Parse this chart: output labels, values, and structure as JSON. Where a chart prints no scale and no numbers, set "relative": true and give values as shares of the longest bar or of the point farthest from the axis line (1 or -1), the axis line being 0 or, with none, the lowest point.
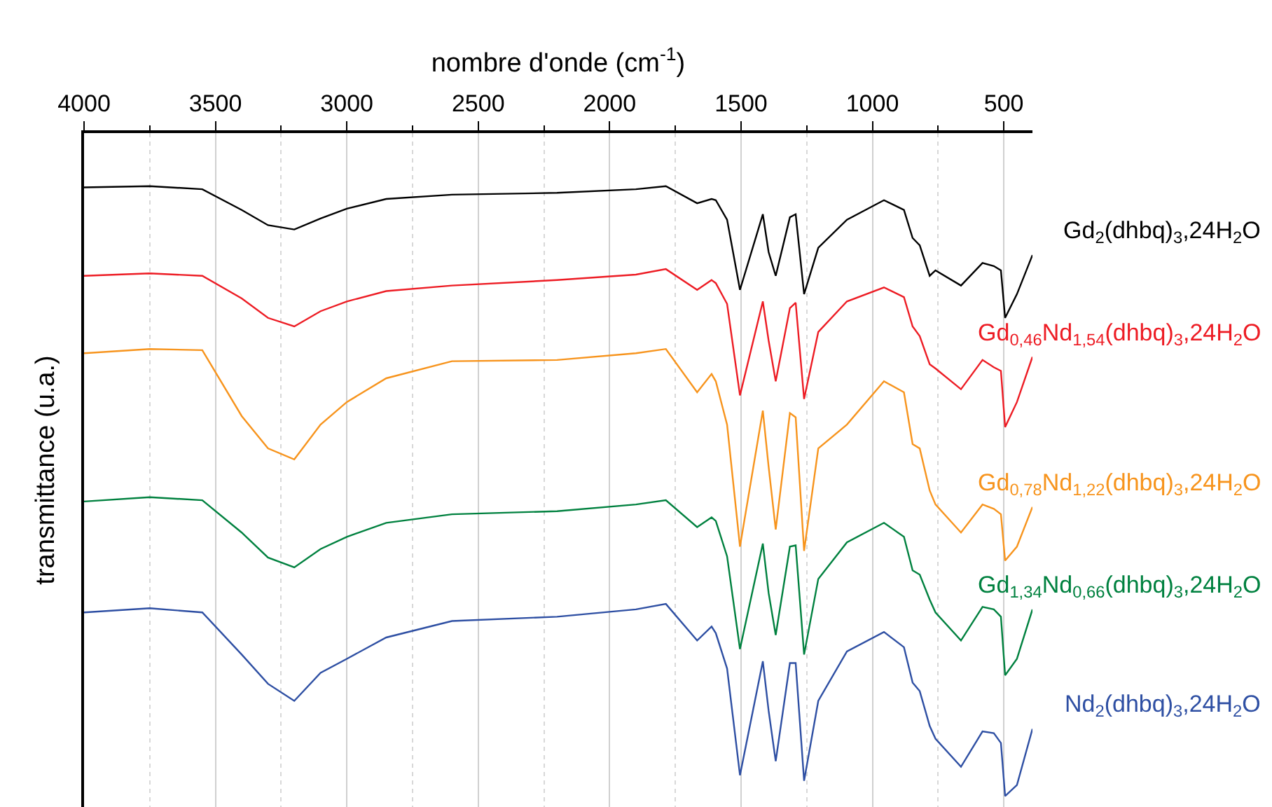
{
  "chart_data": {
    "type": "line",
    "relative": true,
    "xlabel": "nombre d'onde (cm$^{-1}$)",
    "ylabel": "transmittance (u.a.)",
    "x": [
      4000,
      3750,
      3550,
      3400,
      3300,
      3200,
      3100,
      3000,
      2850,
      2600,
      2200,
      1900,
      1786,
      1667,
      1612,
      1596,
      1553,
      1504,
      1417,
      1395,
      1368,
      1314,
      1292,
      1260,
      1206,
      1097,
      956,
      880,
      847,
      820,
      782,
      760,
      663,
      581,
      538,
      511,
      495,
      450,
      391
    ],
    "xlim": [
      4000,
      391
    ],
    "xticks": [
      4000,
      {
        "value": 3750,
        "label": null
      },
      3500,
      {
        "value": 3250,
        "label": null
      },
      3000,
      {
        "value": 2750,
        "label": null
      },
      2500,
      {
        "value": 2250,
        "label": null
      },
      2000,
      {
        "value": 1750,
        "label": null
      },
      1500,
      {
        "value": 1250,
        "label": null
      },
      1000,
      {
        "value": 750,
        "label": null
      },
      500
    ],
    "grid": "x",
    "legend": false,
    "marker": "none",
    "line_style": "solid",
    "series": [
      {
        "name": "Gd$_{2}$(dhbq)$_{3}$,24H$_{2}$O",
        "color": "#000000",
        "values": [
          0.998,
          1.0,
          0.995,
          0.961,
          0.936,
          0.929,
          0.947,
          0.963,
          0.979,
          0.986,
          0.989,
          0.995,
          1.0,
          0.972,
          0.979,
          0.977,
          0.945,
          0.83,
          0.954,
          0.892,
          0.853,
          0.949,
          0.954,
          0.823,
          0.899,
          0.945,
          0.977,
          0.961,
          0.915,
          0.903,
          0.853,
          0.862,
          0.837,
          0.874,
          0.869,
          0.862,
          0.784,
          0.823,
          0.887
        ]
      },
      {
        "name": "Gd$_{0,46}$Nd$_{1,54}$(dhbq)$_{3}$,24H$_{2}$O",
        "color": "#ed1c24",
        "values": [
          0.853,
          0.857,
          0.853,
          0.816,
          0.784,
          0.77,
          0.795,
          0.811,
          0.828,
          0.837,
          0.846,
          0.855,
          0.864,
          0.83,
          0.846,
          0.841,
          0.807,
          0.657,
          0.811,
          0.747,
          0.68,
          0.8,
          0.809,
          0.651,
          0.761,
          0.811,
          0.834,
          0.818,
          0.77,
          0.754,
          0.708,
          0.701,
          0.667,
          0.715,
          0.703,
          0.697,
          0.605,
          0.646,
          0.72
        ]
      },
      {
        "name": "Gd$_{0,78}$Nd$_{1,22}$(dhbq)$_{3}$,24H$_{2}$O",
        "color": "#f7941d",
        "values": [
          0.726,
          0.733,
          0.731,
          0.623,
          0.57,
          0.552,
          0.609,
          0.646,
          0.685,
          0.713,
          0.715,
          0.726,
          0.733,
          0.662,
          0.692,
          0.68,
          0.609,
          0.409,
          0.632,
          0.54,
          0.437,
          0.628,
          0.621,
          0.402,
          0.57,
          0.609,
          0.68,
          0.662,
          0.577,
          0.57,
          0.501,
          0.478,
          0.432,
          0.478,
          0.471,
          0.462,
          0.386,
          0.409,
          0.474
        ]
      },
      {
        "name": "Gd$_{1,34}$Nd$_{0,66}$(dhbq)$_{3}$,24H$_{2}$O",
        "color": "#00813f",
        "values": [
          0.483,
          0.49,
          0.485,
          0.432,
          0.391,
          0.375,
          0.405,
          0.425,
          0.448,
          0.462,
          0.467,
          0.478,
          0.485,
          0.441,
          0.457,
          0.451,
          0.393,
          0.241,
          0.414,
          0.333,
          0.264,
          0.409,
          0.411,
          0.232,
          0.356,
          0.416,
          0.448,
          0.425,
          0.37,
          0.363,
          0.322,
          0.301,
          0.255,
          0.31,
          0.306,
          0.294,
          0.198,
          0.225,
          0.306
        ]
      },
      {
        "name": "Nd$_{2}$(dhbq)$_{3}$,24H$_{2}$O",
        "color": "#2e4fa3",
        "values": [
          0.301,
          0.308,
          0.301,
          0.232,
          0.184,
          0.156,
          0.202,
          0.225,
          0.26,
          0.287,
          0.294,
          0.306,
          0.315,
          0.255,
          0.278,
          0.267,
          0.209,
          0.034,
          0.221,
          0.14,
          0.057,
          0.218,
          0.218,
          0.025,
          0.156,
          0.237,
          0.269,
          0.244,
          0.186,
          0.172,
          0.115,
          0.094,
          0.048,
          0.106,
          0.103,
          0.087,
          0.0,
          0.018,
          0.11
        ]
      }
    ]
  }
}
